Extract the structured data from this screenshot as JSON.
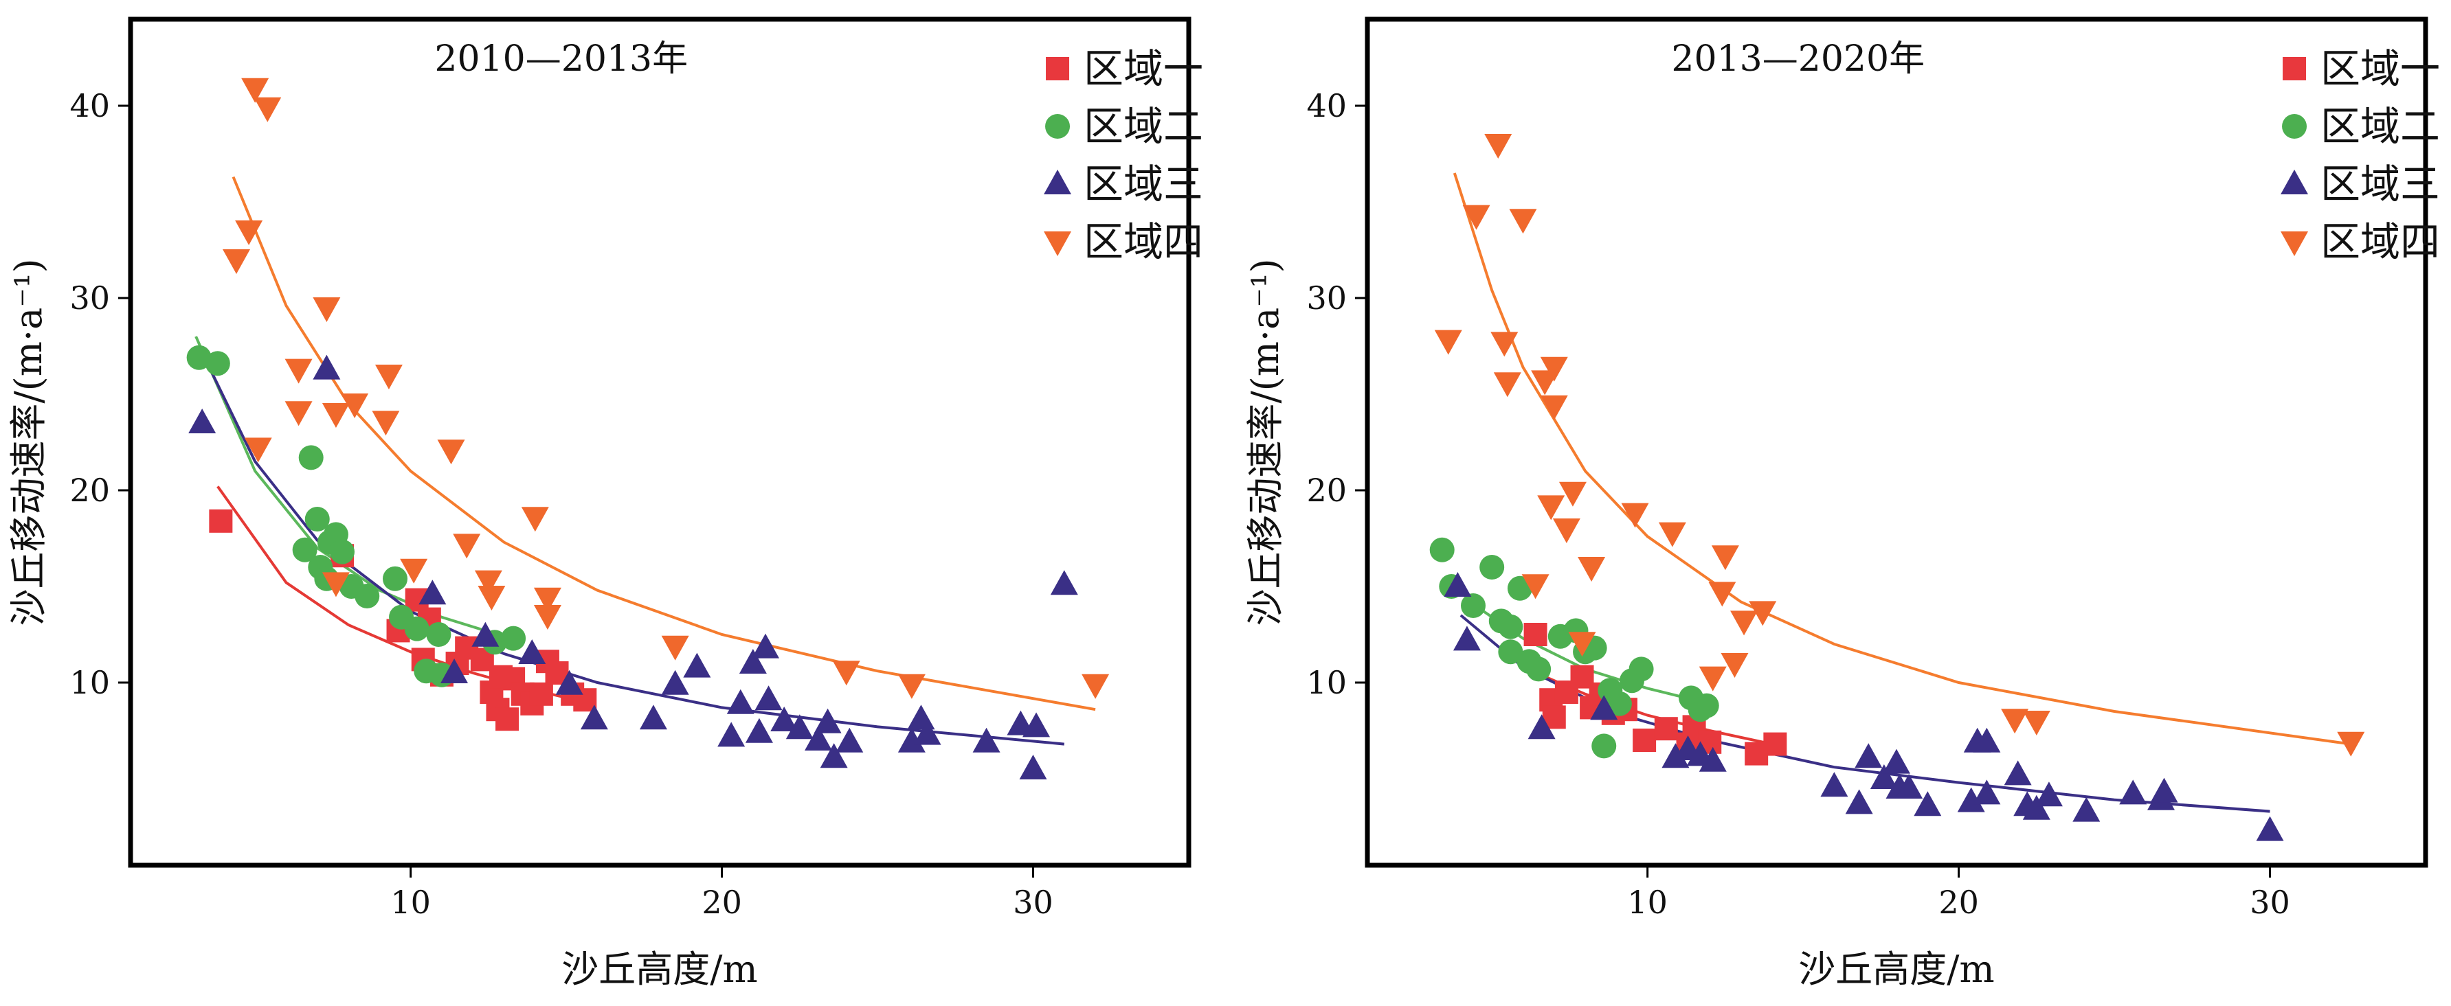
{
  "colors": {
    "region1": "#e8383d",
    "region2": "#4caf50",
    "region3": "#3a2f86",
    "region4": "#f0682c",
    "fit1": "#e53935",
    "fit2": "#5cb85c",
    "fit3": "#3a2f86",
    "fit4": "#f57c2e",
    "frame": "#000000"
  },
  "chart_data": [
    {
      "type": "scatter",
      "title": "2010—2013年",
      "xlabel": "沙丘高度/m",
      "ylabel": "沙丘移动速率/(m·a⁻¹)",
      "xlim": [
        1,
        35
      ],
      "ylim": [
        0.5,
        44.5
      ],
      "xticks": [
        10,
        20,
        30
      ],
      "yticks": [
        10,
        20,
        30,
        40
      ],
      "legend_position": "top-right",
      "series": [
        {
          "name": "区域一",
          "marker": "square",
          "color_key": "region1",
          "points": [
            [
              3.9,
              18.4
            ],
            [
              7.8,
              16.6
            ],
            [
              9.6,
              12.7
            ],
            [
              10.2,
              14.3
            ],
            [
              10.6,
              13.3
            ],
            [
              10.4,
              11.2
            ],
            [
              11.0,
              10.4
            ],
            [
              11.5,
              11.0
            ],
            [
              11.8,
              11.8
            ],
            [
              12.3,
              11.2
            ],
            [
              12.6,
              9.5
            ],
            [
              12.8,
              8.6
            ],
            [
              12.9,
              10.3
            ],
            [
              13.1,
              8.1
            ],
            [
              13.3,
              10.2
            ],
            [
              13.6,
              9.4
            ],
            [
              13.9,
              8.9
            ],
            [
              14.2,
              9.4
            ],
            [
              14.4,
              11.1
            ],
            [
              14.7,
              10.5
            ],
            [
              15.2,
              9.4
            ],
            [
              15.6,
              9.1
            ]
          ],
          "fit": [
            [
              3.8,
              20.2
            ],
            [
              6,
              15.2
            ],
            [
              8,
              13.0
            ],
            [
              10,
              11.6
            ],
            [
              12,
              10.5
            ],
            [
              14,
              9.6
            ],
            [
              15.8,
              8.9
            ]
          ]
        },
        {
          "name": "区域二",
          "marker": "circle",
          "color_key": "region2",
          "points": [
            [
              3.2,
              26.9
            ],
            [
              3.8,
              26.6
            ],
            [
              6.8,
              21.7
            ],
            [
              6.6,
              16.9
            ],
            [
              7.0,
              18.5
            ],
            [
              7.1,
              16.0
            ],
            [
              7.4,
              17.3
            ],
            [
              7.6,
              17.7
            ],
            [
              7.8,
              16.8
            ],
            [
              7.3,
              15.4
            ],
            [
              8.1,
              15.0
            ],
            [
              8.6,
              14.5
            ],
            [
              9.5,
              15.4
            ],
            [
              9.7,
              13.4
            ],
            [
              10.2,
              12.8
            ],
            [
              10.5,
              10.6
            ],
            [
              11.0,
              10.4
            ],
            [
              10.9,
              12.5
            ],
            [
              12.7,
              12.1
            ],
            [
              13.3,
              12.3
            ]
          ],
          "fit": [
            [
              3.1,
              28.0
            ],
            [
              5,
              21.0
            ],
            [
              7,
              17.0
            ],
            [
              9,
              14.8
            ],
            [
              11,
              13.4
            ],
            [
              13,
              12.4
            ]
          ]
        },
        {
          "name": "区域三",
          "marker": "triangle",
          "color_key": "region3",
          "points": [
            [
              3.3,
              23.5
            ],
            [
              7.3,
              26.3
            ],
            [
              10.7,
              14.6
            ],
            [
              11.4,
              10.5
            ],
            [
              12.4,
              12.4
            ],
            [
              13.9,
              11.5
            ],
            [
              15.1,
              9.9
            ],
            [
              15.9,
              8.1
            ],
            [
              17.8,
              8.1
            ],
            [
              18.5,
              9.9
            ],
            [
              19.2,
              10.8
            ],
            [
              20.3,
              7.2
            ],
            [
              20.6,
              8.9
            ],
            [
              21.0,
              11.0
            ],
            [
              21.2,
              7.4
            ],
            [
              21.4,
              11.8
            ],
            [
              21.5,
              9.1
            ],
            [
              22.0,
              8.0
            ],
            [
              22.5,
              7.6
            ],
            [
              23.1,
              7.0
            ],
            [
              23.4,
              7.9
            ],
            [
              23.6,
              6.1
            ],
            [
              24.1,
              6.9
            ],
            [
              26.1,
              6.9
            ],
            [
              26.4,
              8.1
            ],
            [
              26.6,
              7.3
            ],
            [
              28.5,
              6.9
            ],
            [
              29.6,
              7.8
            ],
            [
              30.1,
              7.7
            ],
            [
              30.0,
              5.5
            ],
            [
              31.0,
              15.1
            ]
          ],
          "fit": [
            [
              3.5,
              26.5
            ],
            [
              5,
              21.5
            ],
            [
              7,
              17.4
            ],
            [
              10,
              13.7
            ],
            [
              13,
              11.5
            ],
            [
              16,
              10.0
            ],
            [
              20,
              8.7
            ],
            [
              25,
              7.7
            ],
            [
              31,
              6.8
            ]
          ]
        },
        {
          "name": "区域四",
          "marker": "triangle-down",
          "color_key": "region4",
          "points": [
            [
              5.0,
              40.9
            ],
            [
              5.4,
              39.9
            ],
            [
              4.8,
              33.5
            ],
            [
              4.4,
              32.0
            ],
            [
              6.4,
              26.3
            ],
            [
              6.4,
              24.1
            ],
            [
              7.3,
              29.5
            ],
            [
              7.6,
              24.0
            ],
            [
              8.2,
              24.5
            ],
            [
              9.3,
              26.0
            ],
            [
              9.2,
              23.6
            ],
            [
              7.6,
              15.2
            ],
            [
              5.1,
              22.2
            ],
            [
              10.1,
              15.9
            ],
            [
              11.3,
              22.1
            ],
            [
              11.8,
              17.2
            ],
            [
              12.5,
              15.3
            ],
            [
              12.6,
              14.5
            ],
            [
              14.0,
              18.6
            ],
            [
              14.4,
              14.4
            ],
            [
              14.4,
              13.5
            ],
            [
              18.5,
              11.9
            ],
            [
              24.0,
              10.6
            ],
            [
              26.1,
              9.9
            ],
            [
              32.0,
              9.9
            ]
          ],
          "fit": [
            [
              4.3,
              36.3
            ],
            [
              6,
              29.6
            ],
            [
              8,
              24.5
            ],
            [
              10,
              21.0
            ],
            [
              13,
              17.3
            ],
            [
              16,
              14.8
            ],
            [
              20,
              12.5
            ],
            [
              25,
              10.6
            ],
            [
              32,
              8.6
            ]
          ]
        }
      ]
    },
    {
      "type": "scatter",
      "title": "2013—2020年",
      "xlabel": "沙丘高度/m",
      "ylabel": "沙丘移动速率/(m·a⁻¹)",
      "xlim": [
        1,
        35
      ],
      "ylim": [
        0.5,
        44.5
      ],
      "xticks": [
        10,
        20,
        30
      ],
      "yticks": [
        10,
        20,
        30,
        40
      ],
      "legend_position": "top-right",
      "series": [
        {
          "name": "区域一",
          "marker": "square",
          "color_key": "region1",
          "points": [
            [
              6.4,
              12.5
            ],
            [
              6.9,
              9.1
            ],
            [
              7.0,
              8.2
            ],
            [
              7.4,
              9.5
            ],
            [
              7.9,
              10.3
            ],
            [
              8.2,
              8.7
            ],
            [
              8.5,
              9.4
            ],
            [
              8.9,
              8.4
            ],
            [
              9.3,
              8.6
            ],
            [
              9.9,
              7.0
            ],
            [
              10.6,
              7.6
            ],
            [
              11.3,
              6.8
            ],
            [
              11.5,
              7.7
            ],
            [
              12.0,
              6.9
            ],
            [
              13.5,
              6.3
            ],
            [
              14.1,
              6.8
            ]
          ],
          "fit": [
            [
              6.0,
              10.8
            ],
            [
              8,
              9.4
            ],
            [
              10,
              8.3
            ],
            [
              12,
              7.5
            ],
            [
              14,
              6.8
            ]
          ]
        },
        {
          "name": "区域二",
          "marker": "circle",
          "color_key": "region2",
          "points": [
            [
              3.4,
              16.9
            ],
            [
              3.7,
              15.0
            ],
            [
              4.4,
              14.0
            ],
            [
              5.0,
              16.0
            ],
            [
              5.3,
              13.2
            ],
            [
              5.6,
              12.9
            ],
            [
              5.9,
              14.9
            ],
            [
              5.6,
              11.6
            ],
            [
              6.2,
              11.1
            ],
            [
              6.5,
              10.7
            ],
            [
              7.2,
              12.4
            ],
            [
              7.7,
              12.7
            ],
            [
              8.0,
              11.6
            ],
            [
              8.3,
              11.8
            ],
            [
              8.6,
              6.7
            ],
            [
              8.8,
              9.6
            ],
            [
              9.1,
              8.9
            ],
            [
              9.5,
              10.1
            ],
            [
              9.8,
              10.7
            ],
            [
              11.4,
              9.2
            ],
            [
              11.7,
              8.6
            ],
            [
              11.9,
              8.8
            ]
          ],
          "fit": [
            [
              4.2,
              14.3
            ],
            [
              6,
              12.3
            ],
            [
              8,
              10.7
            ],
            [
              10,
              9.7
            ],
            [
              12,
              8.9
            ]
          ]
        },
        {
          "name": "区域三",
          "marker": "triangle",
          "color_key": "region3",
          "points": [
            [
              3.9,
              15.0
            ],
            [
              4.2,
              12.2
            ],
            [
              6.6,
              7.6
            ],
            [
              8.6,
              8.6
            ],
            [
              10.9,
              6.1
            ],
            [
              11.3,
              6.5
            ],
            [
              11.7,
              6.2
            ],
            [
              12.1,
              5.9
            ],
            [
              16.0,
              4.6
            ],
            [
              16.8,
              3.7
            ],
            [
              17.1,
              6.1
            ],
            [
              17.6,
              5.0
            ],
            [
              18.0,
              5.8
            ],
            [
              18.1,
              4.5
            ],
            [
              18.4,
              4.5
            ],
            [
              19.0,
              3.6
            ],
            [
              20.4,
              3.8
            ],
            [
              20.6,
              6.9
            ],
            [
              20.9,
              6.9
            ],
            [
              20.9,
              4.2
            ],
            [
              21.9,
              5.2
            ],
            [
              22.2,
              3.6
            ],
            [
              22.5,
              3.4
            ],
            [
              22.9,
              4.1
            ],
            [
              24.1,
              3.3
            ],
            [
              25.6,
              4.2
            ],
            [
              26.5,
              3.9
            ],
            [
              26.6,
              4.3
            ],
            [
              30.0,
              2.3
            ]
          ],
          "fit": [
            [
              4.0,
              13.5
            ],
            [
              6,
              10.8
            ],
            [
              9,
              8.4
            ],
            [
              12,
              7.0
            ],
            [
              16,
              5.6
            ],
            [
              20,
              4.8
            ],
            [
              25,
              3.9
            ],
            [
              30,
              3.3
            ]
          ]
        },
        {
          "name": "区域四",
          "marker": "triangle-down",
          "color_key": "region4",
          "points": [
            [
              3.6,
              27.8
            ],
            [
              4.5,
              34.3
            ],
            [
              5.2,
              38.0
            ],
            [
              5.4,
              27.7
            ],
            [
              5.5,
              25.6
            ],
            [
              6.0,
              34.1
            ],
            [
              6.7,
              25.7
            ],
            [
              7.0,
              26.4
            ],
            [
              7.0,
              24.4
            ],
            [
              6.9,
              19.2
            ],
            [
              7.4,
              18.0
            ],
            [
              7.6,
              19.9
            ],
            [
              8.2,
              16.0
            ],
            [
              7.9,
              12.1
            ],
            [
              6.4,
              15.1
            ],
            [
              9.6,
              18.8
            ],
            [
              10.8,
              17.8
            ],
            [
              12.5,
              16.6
            ],
            [
              12.4,
              14.7
            ],
            [
              13.1,
              13.2
            ],
            [
              12.1,
              10.3
            ],
            [
              12.8,
              11.0
            ],
            [
              13.7,
              13.7
            ],
            [
              21.8,
              8.1
            ],
            [
              22.5,
              8.0
            ],
            [
              32.6,
              6.9
            ]
          ],
          "fit": [
            [
              3.8,
              36.5
            ],
            [
              5,
              30.4
            ],
            [
              6,
              26.4
            ],
            [
              8,
              21.0
            ],
            [
              10,
              17.6
            ],
            [
              13,
              14.2
            ],
            [
              16,
              12.0
            ],
            [
              20,
              10.0
            ],
            [
              25,
              8.5
            ],
            [
              32.6,
              6.8
            ]
          ]
        }
      ]
    }
  ]
}
